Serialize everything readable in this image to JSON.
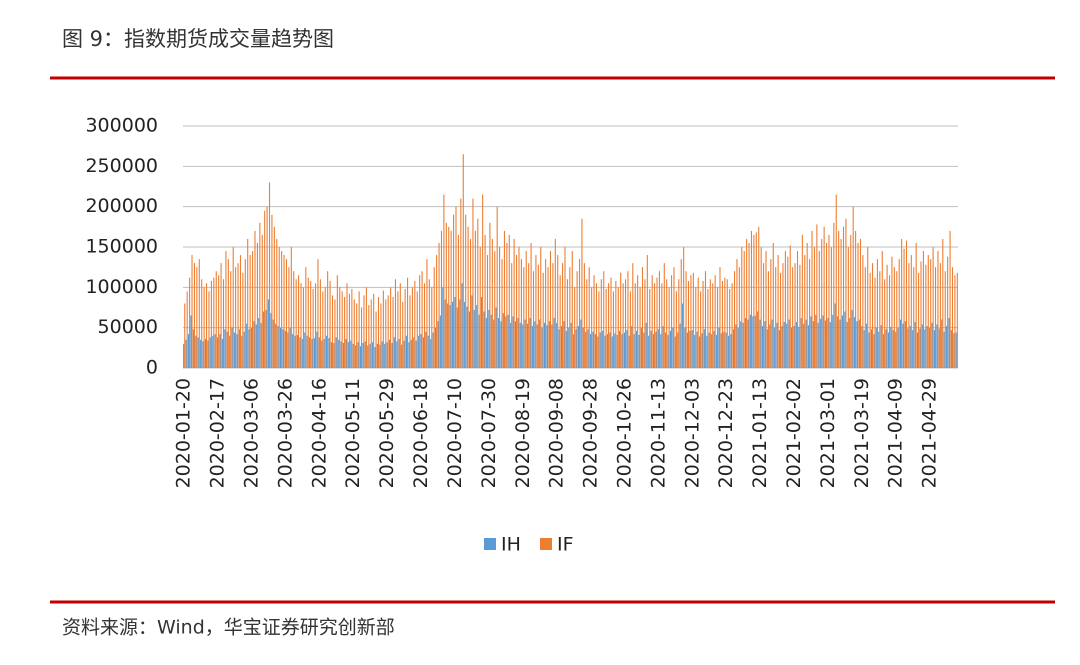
{
  "chart_data": {
    "type": "bar",
    "title": "图 9：指数期货成交量趋势图",
    "source": "资料来源：Wind，华宝证券研究创新部",
    "legend": "bottom",
    "grid": true,
    "ylim": [
      0,
      300000
    ],
    "yticks": [
      0,
      50000,
      100000,
      150000,
      200000,
      250000,
      300000
    ],
    "categories": [
      "2020-01-20",
      null,
      null,
      null,
      null,
      null,
      null,
      null,
      null,
      null,
      null,
      null,
      null,
      null,
      "2020-02-17",
      null,
      null,
      null,
      null,
      null,
      null,
      null,
      null,
      null,
      null,
      null,
      null,
      null,
      "2020-03-06",
      null,
      null,
      null,
      null,
      null,
      null,
      null,
      null,
      null,
      null,
      null,
      null,
      null,
      "2020-03-26",
      null,
      null,
      null,
      null,
      null,
      null,
      null,
      null,
      null,
      null,
      null,
      null,
      null,
      "2020-04-16",
      null,
      null,
      null,
      null,
      null,
      null,
      null,
      null,
      null,
      null,
      null,
      null,
      null,
      "2020-05-11",
      null,
      null,
      null,
      null,
      null,
      null,
      null,
      null,
      null,
      null,
      null,
      null,
      null,
      "2020-05-29",
      null,
      null,
      null,
      null,
      null,
      null,
      null,
      null,
      null,
      null,
      null,
      null,
      null,
      "2020-06-18",
      null,
      null,
      null,
      null,
      null,
      null,
      null,
      null,
      null,
      null,
      null,
      null,
      null,
      "2020-07-10",
      null,
      null,
      null,
      null,
      null,
      null,
      null,
      null,
      null,
      null,
      null,
      null,
      null,
      "2020-07-30",
      null,
      null,
      null,
      null,
      null,
      null,
      null,
      null,
      null,
      null,
      null,
      null,
      null,
      "2020-08-19",
      null,
      null,
      null,
      null,
      null,
      null,
      null,
      null,
      null,
      null,
      null,
      null,
      null,
      "2020-09-08",
      null,
      null,
      null,
      null,
      null,
      null,
      null,
      null,
      null,
      null,
      null,
      null,
      null,
      "2020-09-28",
      null,
      null,
      null,
      null,
      null,
      null,
      null,
      null,
      null,
      null,
      null,
      null,
      null,
      "2020-10-26",
      null,
      null,
      null,
      null,
      null,
      null,
      null,
      null,
      null,
      null,
      null,
      null,
      null,
      "2020-11-13",
      null,
      null,
      null,
      null,
      null,
      null,
      null,
      null,
      null,
      null,
      null,
      null,
      null,
      "2020-12-03",
      null,
      null,
      null,
      null,
      null,
      null,
      null,
      null,
      null,
      null,
      null,
      null,
      null,
      "2020-12-23",
      null,
      null,
      null,
      null,
      null,
      null,
      null,
      null,
      null,
      null,
      null,
      null,
      null,
      "2021-01-13",
      null,
      null,
      null,
      null,
      null,
      null,
      null,
      null,
      null,
      null,
      null,
      null,
      null,
      "2021-02-02",
      null,
      null,
      null,
      null,
      null,
      null,
      null,
      null,
      null,
      null,
      null,
      null,
      null,
      "2021-03-01",
      null,
      null,
      null,
      null,
      null,
      null,
      null,
      null,
      null,
      null,
      null,
      null,
      null,
      "2021-03-19",
      null,
      null,
      null,
      null,
      null,
      null,
      null,
      null,
      null,
      null,
      null,
      null,
      null,
      "2021-04-09",
      null,
      null,
      null,
      null,
      null,
      null,
      null,
      null,
      null,
      null,
      null,
      null,
      null,
      "2021-04-29",
      null,
      null,
      null,
      null,
      null,
      null,
      null,
      null,
      null,
      null,
      null
    ],
    "series": [
      {
        "name": "IH",
        "color": "#5b9bd5",
        "values": [
          30000,
          35000,
          42000,
          65000,
          48000,
          40000,
          38000,
          35000,
          33000,
          36000,
          34000,
          38000,
          40000,
          42000,
          38000,
          42000,
          36000,
          48000,
          45000,
          40000,
          50000,
          44000,
          42000,
          48000,
          40000,
          45000,
          55000,
          48000,
          50000,
          58000,
          54000,
          62000,
          56000,
          70000,
          72000,
          85000,
          68000,
          60000,
          55000,
          52000,
          50000,
          48000,
          46000,
          44000,
          50000,
          42000,
          40000,
          41000,
          38000,
          36000,
          44000,
          40000,
          38000,
          36000,
          37000,
          45000,
          38000,
          34000,
          36000,
          40000,
          37000,
          32000,
          31000,
          38000,
          35000,
          33000,
          31000,
          36000,
          32000,
          34000,
          30000,
          28000,
          32000,
          27000,
          31000,
          33000,
          28000,
          30000,
          32000,
          26000,
          30000,
          29000,
          33000,
          30000,
          32000,
          35000,
          31000,
          38000,
          33000,
          36000,
          29000,
          34000,
          40000,
          32000,
          35000,
          38000,
          34000,
          40000,
          42000,
          38000,
          45000,
          40000,
          36000,
          44000,
          50000,
          58000,
          65000,
          100000,
          85000,
          80000,
          78000,
          82000,
          88000,
          75000,
          85000,
          105000,
          82000,
          76000,
          70000,
          90000,
          72000,
          78000,
          66000,
          88000,
          70000,
          62000,
          72000,
          66000,
          60000,
          75000,
          62000,
          58000,
          68000,
          64000,
          66000,
          56000,
          64000,
          58000,
          62000,
          56000,
          54000,
          60000,
          55000,
          62000,
          52000,
          58000,
          54000,
          60000,
          50000,
          56000,
          53000,
          58000,
          54000,
          62000,
          56000,
          48000,
          52000,
          58000,
          46000,
          50000,
          56000,
          42000,
          48000,
          52000,
          60000,
          50000,
          45000,
          48000,
          42000,
          45000,
          42000,
          39000,
          44000,
          46000,
          40000,
          42000,
          44000,
          39000,
          43000,
          41000,
          46000,
          42000,
          44000,
          47000,
          40000,
          52000,
          42000,
          46000,
          41000,
          50000,
          44000,
          56000,
          40000,
          46000,
          42000,
          45000,
          48000,
          42000,
          52000,
          44000,
          41000,
          46000,
          50000,
          39000,
          44000,
          55000,
          80000,
          50000,
          44000,
          46000,
          47000,
          41000,
          45000,
          39000,
          43000,
          48000,
          40000,
          44000,
          42000,
          46000,
          41000,
          50000,
          43000,
          45000,
          44000,
          40000,
          42000,
          48000,
          54000,
          50000,
          58000,
          56000,
          62000,
          60000,
          66000,
          64000,
          65000,
          70000,
          60000,
          52000,
          58000,
          48000,
          54000,
          60000,
          50000,
          56000,
          47000,
          52000,
          57000,
          55000,
          60000,
          50000,
          52000,
          57000,
          51000,
          62000,
          55000,
          60000,
          53000,
          64000,
          58000,
          66000,
          56000,
          61000,
          65000,
          59000,
          62000,
          57000,
          66000,
          80000,
          64000,
          60000,
          65000,
          70000,
          57000,
          62000,
          72000,
          63000,
          58000,
          60000,
          52000,
          47000,
          55000,
          44000,
          48000,
          42000,
          50000,
          45000,
          53000,
          42000,
          48000,
          44000,
          51000,
          47000,
          45000,
          50000,
          60000,
          55000,
          58000,
          49000,
          52000,
          47000,
          57000,
          44000,
          49000,
          54000,
          48000,
          52000,
          50000,
          56000,
          47000,
          54000,
          49000,
          60000,
          45000,
          52000,
          62000,
          47000,
          43000,
          44000
        ]
      },
      {
        "name": "IF",
        "color": "#ed7d31",
        "values": [
          80000,
          95000,
          112000,
          140000,
          130000,
          125000,
          135000,
          110000,
          100000,
          105000,
          95000,
          108000,
          112000,
          120000,
          115000,
          130000,
          110000,
          145000,
          135000,
          120000,
          150000,
          125000,
          130000,
          140000,
          118000,
          135000,
          160000,
          140000,
          145000,
          170000,
          155000,
          180000,
          165000,
          195000,
          200000,
          230000,
          190000,
          175000,
          160000,
          150000,
          145000,
          140000,
          135000,
          125000,
          150000,
          120000,
          110000,
          115000,
          105000,
          100000,
          125000,
          112000,
          108000,
          98000,
          105000,
          135000,
          110000,
          95000,
          100000,
          120000,
          108000,
          90000,
          85000,
          115000,
          100000,
          95000,
          88000,
          105000,
          92000,
          98000,
          85000,
          80000,
          95000,
          75000,
          90000,
          100000,
          78000,
          85000,
          92000,
          70000,
          88000,
          80000,
          96000,
          85000,
          90000,
          100000,
          88000,
          110000,
          95000,
          105000,
          82000,
          98000,
          112000,
          90000,
          100000,
          108000,
          95000,
          115000,
          120000,
          105000,
          135000,
          110000,
          100000,
          125000,
          140000,
          155000,
          170000,
          215000,
          180000,
          175000,
          170000,
          190000,
          200000,
          165000,
          210000,
          265000,
          190000,
          175000,
          160000,
          210000,
          170000,
          185000,
          150000,
          215000,
          165000,
          140000,
          180000,
          160000,
          145000,
          200000,
          150000,
          135000,
          170000,
          155000,
          165000,
          130000,
          160000,
          140000,
          150000,
          135000,
          125000,
          145000,
          130000,
          155000,
          120000,
          140000,
          128000,
          150000,
          118000,
          135000,
          125000,
          145000,
          130000,
          160000,
          140000,
          115000,
          130000,
          150000,
          110000,
          125000,
          145000,
          100000,
          120000,
          135000,
          185000,
          130000,
          110000,
          125000,
          100000,
          115000,
          105000,
          95000,
          110000,
          120000,
          98000,
          105000,
          112000,
          95000,
          108000,
          100000,
          118000,
          105000,
          110000,
          120000,
          95000,
          130000,
          105000,
          115000,
          100000,
          125000,
          110000,
          140000,
          98000,
          115000,
          105000,
          112000,
          120000,
          105000,
          130000,
          110000,
          100000,
          115000,
          125000,
          95000,
          110000,
          135000,
          150000,
          120000,
          108000,
          115000,
          118000,
          100000,
          112000,
          95000,
          108000,
          120000,
          98000,
          110000,
          105000,
          115000,
          100000,
          125000,
          108000,
          112000,
          110000,
          98000,
          105000,
          120000,
          135000,
          125000,
          150000,
          145000,
          160000,
          155000,
          170000,
          165000,
          168000,
          175000,
          150000,
          130000,
          145000,
          120000,
          135000,
          155000,
          125000,
          140000,
          118000,
          130000,
          145000,
          138000,
          152000,
          125000,
          130000,
          145000,
          128000,
          165000,
          140000,
          155000,
          135000,
          170000,
          150000,
          178000,
          145000,
          160000,
          175000,
          155000,
          165000,
          150000,
          180000,
          215000,
          170000,
          160000,
          175000,
          185000,
          150000,
          165000,
          200000,
          170000,
          155000,
          160000,
          140000,
          125000,
          150000,
          118000,
          130000,
          112000,
          135000,
          120000,
          145000,
          110000,
          128000,
          115000,
          138000,
          125000,
          120000,
          135000,
          160000,
          148000,
          158000,
          130000,
          140000,
          125000,
          155000,
          118000,
          132000,
          145000,
          128000,
          140000,
          135000,
          150000,
          125000,
          145000,
          130000,
          160000,
          120000,
          138000,
          170000,
          125000,
          115000,
          118000
        ]
      }
    ]
  }
}
